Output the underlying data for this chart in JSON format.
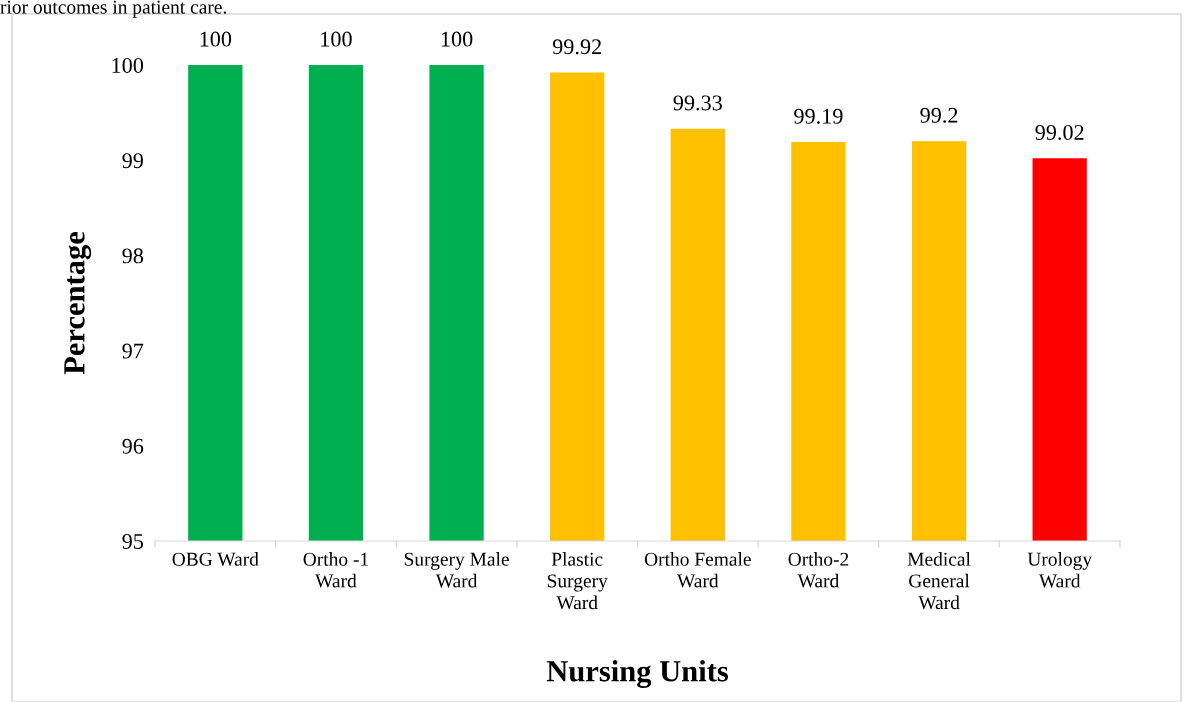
{
  "chart_data": {
    "type": "bar",
    "categories": [
      "OBG Ward",
      "Ortho -1\nWard",
      "Surgery Male\nWard",
      "Plastic\nSurgery\nWard",
      "Ortho Female\nWard",
      "Ortho-2\nWard",
      "Medical\nGeneral\nWard",
      "Urology\nWard"
    ],
    "values": [
      100,
      100,
      100,
      99.92,
      99.33,
      99.19,
      99.2,
      99.02
    ],
    "colors": [
      "#00b050",
      "#00b050",
      "#00b050",
      "#ffc000",
      "#ffc000",
      "#ffc000",
      "#ffc000",
      "#ff0000"
    ],
    "xlabel": "Nursing Units",
    "ylabel": "Percentage",
    "ylim": [
      95,
      100
    ],
    "yticks": [
      95,
      96,
      97,
      98,
      99,
      100
    ],
    "data_labels": true,
    "grid": false,
    "legend": false,
    "annotations": [
      "rior outcomes in patient care."
    ]
  }
}
